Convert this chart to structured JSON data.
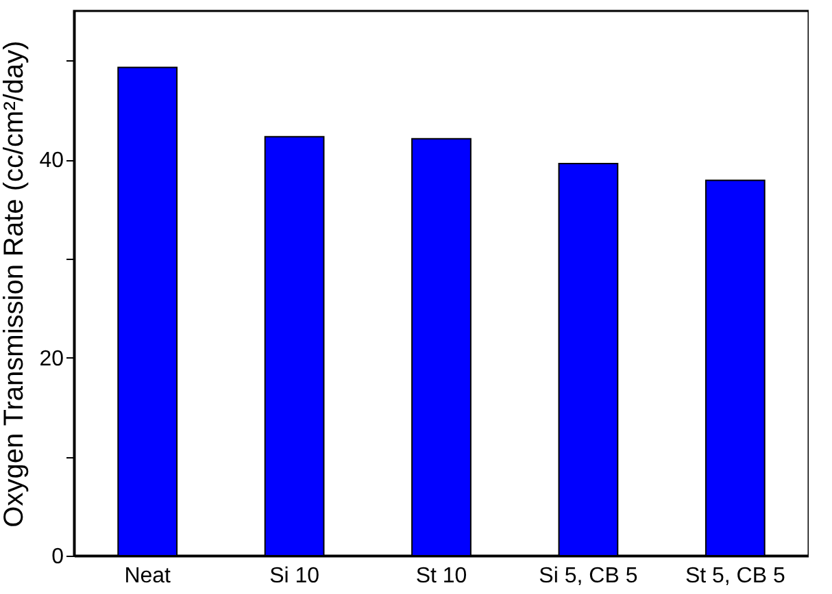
{
  "chart_data": {
    "type": "bar",
    "ylabel": "Oxygen Transmission Rate (cc/cm²/day)",
    "categories": [
      "Neat",
      "Si 10",
      "St 10",
      "Si 5, CB 5",
      "St 5, CB 5"
    ],
    "values": [
      49.3,
      42.3,
      42.1,
      39.6,
      37.9
    ],
    "color": "#0000ff",
    "ylim": [
      0,
      55
    ],
    "yticks": [
      0,
      {
        "value": 10,
        "label": null
      },
      20,
      {
        "value": 30,
        "label": null
      },
      40,
      {
        "value": 50,
        "label": null
      }
    ],
    "grid": false
  }
}
